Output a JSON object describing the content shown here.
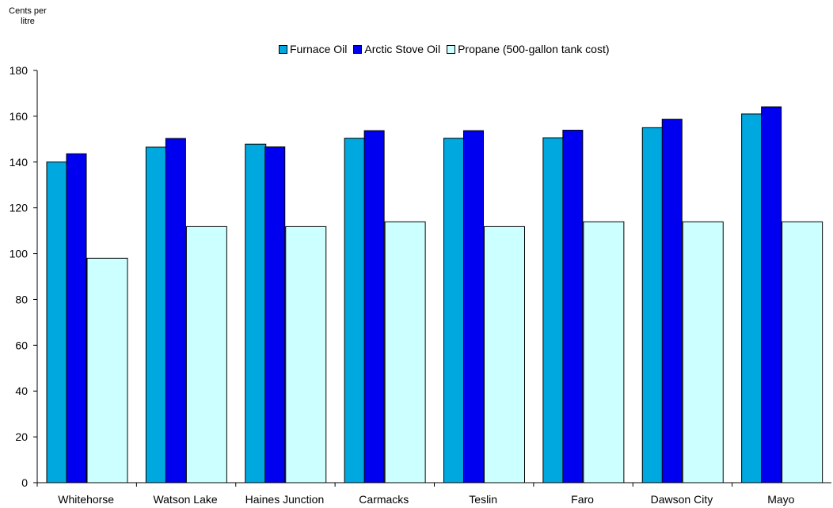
{
  "chart_data": {
    "type": "bar",
    "title": "",
    "ylabel": "Cents per\nlitre",
    "xlabel": "",
    "ylim": [
      0,
      180
    ],
    "yticks": [
      0,
      20,
      40,
      60,
      80,
      100,
      120,
      140,
      160,
      180
    ],
    "grid": false,
    "legend_position": "top",
    "categories": [
      "Whitehorse",
      "Watson Lake",
      "Haines Junction",
      "Carmacks",
      "Teslin",
      "Faro",
      "Dawson City",
      "Mayo"
    ],
    "series": [
      {
        "name": "Furnace Oil",
        "color": "#00A8E0",
        "values": [
          140.0,
          146.5,
          147.8,
          150.4,
          150.4,
          150.6,
          155.0,
          161.0
        ]
      },
      {
        "name": "Arctic Stove Oil",
        "color": "#0000F0",
        "values": [
          143.6,
          150.3,
          146.6,
          153.7,
          153.7,
          153.9,
          158.7,
          164.1
        ]
      },
      {
        "name": "Propane (500-gallon tank cost)",
        "color": "#CCFFFF",
        "values": [
          98.0,
          111.8,
          111.8,
          113.9,
          111.8,
          113.9,
          113.9,
          113.9
        ]
      }
    ]
  }
}
